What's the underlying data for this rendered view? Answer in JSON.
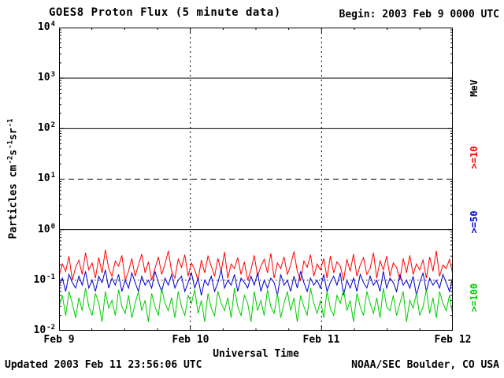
{
  "header": {
    "title": "GOES8 Proton Flux (5 minute data)",
    "begin_label": "Begin: 2003 Feb 9 0000 UTC"
  },
  "footer": {
    "updated": "Updated 2003 Feb 11 23:56:06 UTC",
    "source": "NOAA/SEC Boulder, CO USA"
  },
  "axes": {
    "x_label": "Universal Time",
    "x_ticks": [
      "Feb 9",
      "Feb 10",
      "Feb 11",
      "Feb 12"
    ],
    "y_ticks": [
      {
        "base": "10",
        "exp": "4"
      },
      {
        "base": "10",
        "exp": "3"
      },
      {
        "base": "10",
        "exp": "2"
      },
      {
        "base": "10",
        "exp": "1"
      },
      {
        "base": "10",
        "exp": "0"
      },
      {
        "base": "10",
        "exp": "-1"
      },
      {
        "base": "10",
        "exp": "-2"
      }
    ],
    "y_label_parts": {
      "p1": "Particles cm",
      "s1": "-2",
      "p2": "s",
      "s2": "-1",
      "p3": "sr",
      "s3": "-1"
    },
    "right_unit": "MeV",
    "right_series_labels": [
      {
        "text": ">=10"
      },
      {
        "text": ">=50"
      },
      {
        "text": ">=100"
      }
    ]
  },
  "chart_data": {
    "type": "line",
    "title": "GOES8 Proton Flux (5 minute data)",
    "xlabel": "Universal Time",
    "ylabel": "Particles cm^-2 s^-1 sr^-1",
    "x_tick_labels": [
      "Feb 9",
      "Feb 10",
      "Feb 11",
      "Feb 12"
    ],
    "x_span_days": 3,
    "begin_time": "2003 Feb 9 0000 UTC",
    "y_scale": "log",
    "y_log_range": [
      0.01,
      10000
    ],
    "gridlines": {
      "solid_y": [
        1000,
        100,
        1
      ],
      "dashed_y": [
        10
      ],
      "dotted_y": [
        0.1
      ],
      "vertical_days": [
        1,
        2
      ]
    },
    "series": [
      {
        "name": ">=10 MeV",
        "color": "#ff0000",
        "values": [
          0.12,
          0.21,
          0.15,
          0.3,
          0.1,
          0.18,
          0.25,
          0.13,
          0.35,
          0.16,
          0.22,
          0.11,
          0.28,
          0.14,
          0.4,
          0.17,
          0.12,
          0.24,
          0.19,
          0.31,
          0.1,
          0.15,
          0.27,
          0.12,
          0.2,
          0.33,
          0.14,
          0.23,
          0.1,
          0.17,
          0.29,
          0.13,
          0.21,
          0.38,
          0.15,
          0.11,
          0.26,
          0.18,
          0.32,
          0.12,
          0.22,
          0.16,
          0.1,
          0.25,
          0.14,
          0.3,
          0.19,
          0.12,
          0.27,
          0.15,
          0.36,
          0.11,
          0.21,
          0.17,
          0.28,
          0.13,
          0.23,
          0.1,
          0.16,
          0.31,
          0.12,
          0.19,
          0.26,
          0.14,
          0.34,
          0.11,
          0.22,
          0.17,
          0.29,
          0.13,
          0.2,
          0.37,
          0.15,
          0.1,
          0.24,
          0.18,
          0.32,
          0.12,
          0.21,
          0.16,
          0.27,
          0.11,
          0.3,
          0.14,
          0.23,
          0.19,
          0.1,
          0.26,
          0.15,
          0.33,
          0.12,
          0.2,
          0.28,
          0.13,
          0.17,
          0.35,
          0.11,
          0.24,
          0.16,
          0.3,
          0.12,
          0.22,
          0.18,
          0.1,
          0.27,
          0.14,
          0.31,
          0.13,
          0.21,
          0.16,
          0.25,
          0.11,
          0.29,
          0.15,
          0.38,
          0.12,
          0.2,
          0.17,
          0.26,
          0.13
        ]
      },
      {
        "name": ">=50 MeV",
        "color": "#0000cc",
        "values": [
          0.08,
          0.11,
          0.06,
          0.13,
          0.09,
          0.07,
          0.12,
          0.08,
          0.15,
          0.07,
          0.1,
          0.06,
          0.12,
          0.09,
          0.16,
          0.07,
          0.11,
          0.08,
          0.13,
          0.06,
          0.1,
          0.07,
          0.14,
          0.09,
          0.06,
          0.12,
          0.08,
          0.1,
          0.07,
          0.15,
          0.09,
          0.06,
          0.11,
          0.08,
          0.13,
          0.07,
          0.1,
          0.12,
          0.06,
          0.09,
          0.14,
          0.07,
          0.11,
          0.05,
          0.1,
          0.08,
          0.12,
          0.06,
          0.09,
          0.16,
          0.07,
          0.1,
          0.08,
          0.13,
          0.06,
          0.11,
          0.09,
          0.07,
          0.12,
          0.08,
          0.14,
          0.06,
          0.1,
          0.07,
          0.11,
          0.09,
          0.05,
          0.13,
          0.08,
          0.1,
          0.06,
          0.12,
          0.07,
          0.15,
          0.09,
          0.06,
          0.11,
          0.08,
          0.1,
          0.07,
          0.13,
          0.06,
          0.09,
          0.12,
          0.08,
          0.14,
          0.05,
          0.1,
          0.07,
          0.11,
          0.06,
          0.13,
          0.09,
          0.07,
          0.12,
          0.08,
          0.1,
          0.06,
          0.15,
          0.07,
          0.11,
          0.09,
          0.06,
          0.13,
          0.08,
          0.1,
          0.07,
          0.12,
          0.05,
          0.09,
          0.14,
          0.06,
          0.11,
          0.08,
          0.1,
          0.07,
          0.13,
          0.09,
          0.06,
          0.12
        ]
      },
      {
        "name": ">=100 MeV",
        "color": "#00cc00",
        "values": [
          0.03,
          0.05,
          0.02,
          0.06,
          0.035,
          0.018,
          0.045,
          0.025,
          0.07,
          0.03,
          0.02,
          0.055,
          0.035,
          0.015,
          0.06,
          0.028,
          0.04,
          0.02,
          0.065,
          0.03,
          0.022,
          0.05,
          0.018,
          0.035,
          0.06,
          0.025,
          0.04,
          0.015,
          0.055,
          0.03,
          0.02,
          0.07,
          0.035,
          0.025,
          0.045,
          0.018,
          0.06,
          0.03,
          0.02,
          0.05,
          0.035,
          0.065,
          0.022,
          0.04,
          0.015,
          0.055,
          0.028,
          0.02,
          0.06,
          0.035,
          0.025,
          0.045,
          0.018,
          0.07,
          0.03,
          0.02,
          0.05,
          0.035,
          0.015,
          0.06,
          0.025,
          0.04,
          0.02,
          0.065,
          0.03,
          0.022,
          0.055,
          0.018,
          0.035,
          0.06,
          0.025,
          0.045,
          0.015,
          0.05,
          0.03,
          0.02,
          0.07,
          0.035,
          0.022,
          0.04,
          0.018,
          0.06,
          0.028,
          0.02,
          0.05,
          0.035,
          0.065,
          0.025,
          0.04,
          0.015,
          0.055,
          0.03,
          0.02,
          0.06,
          0.035,
          0.022,
          0.045,
          0.018,
          0.07,
          0.03,
          0.025,
          0.05,
          0.02,
          0.035,
          0.06,
          0.015,
          0.04,
          0.028,
          0.055,
          0.02,
          0.03,
          0.065,
          0.022,
          0.045,
          0.018,
          0.06,
          0.035,
          0.025,
          0.05,
          0.02
        ]
      }
    ]
  }
}
